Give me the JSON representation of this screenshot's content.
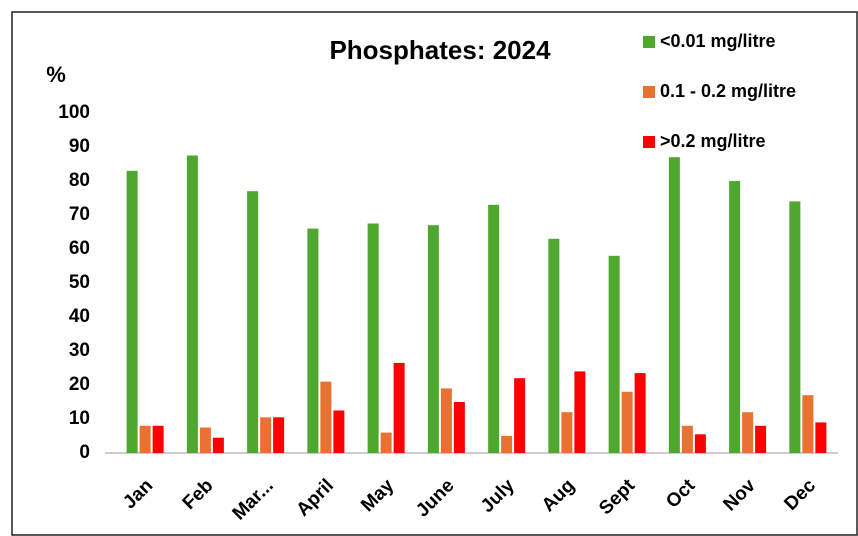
{
  "chart_data": {
    "type": "bar",
    "title": "Phosphates: 2024",
    "y_axis_label": "%",
    "categories": [
      "Jan",
      "Feb",
      "Mar...",
      "April",
      "May",
      "June",
      "July",
      "Aug",
      "Sept",
      "Oct",
      "Nov",
      "Dec"
    ],
    "series": [
      {
        "name": "<0.01 mg/litre",
        "color": "#4ea72e",
        "values": [
          83,
          87.5,
          77,
          66,
          67.5,
          67,
          73,
          63,
          58,
          87,
          80,
          74
        ]
      },
      {
        "name": "0.1 - 0.2 mg/litre",
        "color": "#e97132",
        "values": [
          8,
          7.5,
          10.5,
          21,
          6,
          19,
          5,
          12,
          18,
          8,
          12,
          17
        ]
      },
      {
        "name": ">0.2 mg/litre",
        "color": "#ff0000",
        "values": [
          8,
          4.5,
          10.5,
          12.5,
          26.5,
          15,
          22,
          24,
          23.5,
          5.5,
          8,
          9
        ]
      }
    ],
    "ylim": [
      0,
      100
    ],
    "yticks": [
      0,
      10,
      20,
      30,
      40,
      50,
      60,
      70,
      80,
      90,
      100
    ],
    "grid": false,
    "legend": "top-right"
  }
}
